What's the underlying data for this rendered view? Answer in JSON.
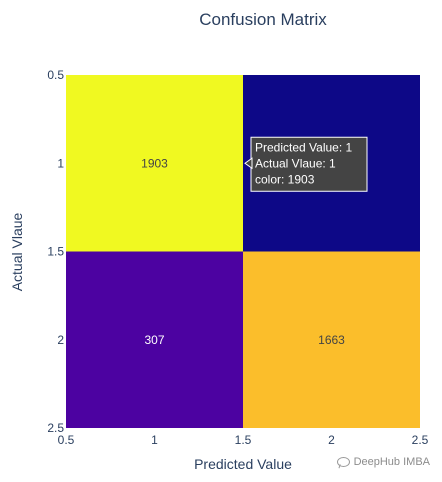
{
  "chart_data": {
    "type": "heatmap",
    "title": "Confusion Matrix",
    "xlabel": "Predicted Value",
    "ylabel": "Actual Vlaue",
    "x": [
      1,
      2
    ],
    "y": [
      1,
      2
    ],
    "z": [
      [
        1903,
        0
      ],
      [
        307,
        1663
      ]
    ],
    "cell_labels": [
      [
        "1903",
        ""
      ],
      [
        "307",
        "1663"
      ]
    ],
    "xlim": [
      0.5,
      2.5
    ],
    "ylim": [
      0.5,
      2.5
    ],
    "y_reversed": true,
    "x_ticks": [
      "0.5",
      "1",
      "1.5",
      "2",
      "2.5"
    ],
    "y_ticks": [
      "0.5",
      "1",
      "1.5",
      "2",
      "2.5"
    ],
    "colorscale": "Plasma",
    "cell_colors": [
      [
        "#f0f921",
        "#0d0887"
      ],
      [
        "#4c02a1",
        "#fbbe2b"
      ]
    ],
    "tooltip": {
      "lines": [
        "Predicted Value: 1",
        "Actual Vlaue: 1",
        "color: 1903"
      ]
    }
  },
  "watermark": {
    "text": "DeepHub IMBA",
    "icon": "wechat-icon"
  }
}
